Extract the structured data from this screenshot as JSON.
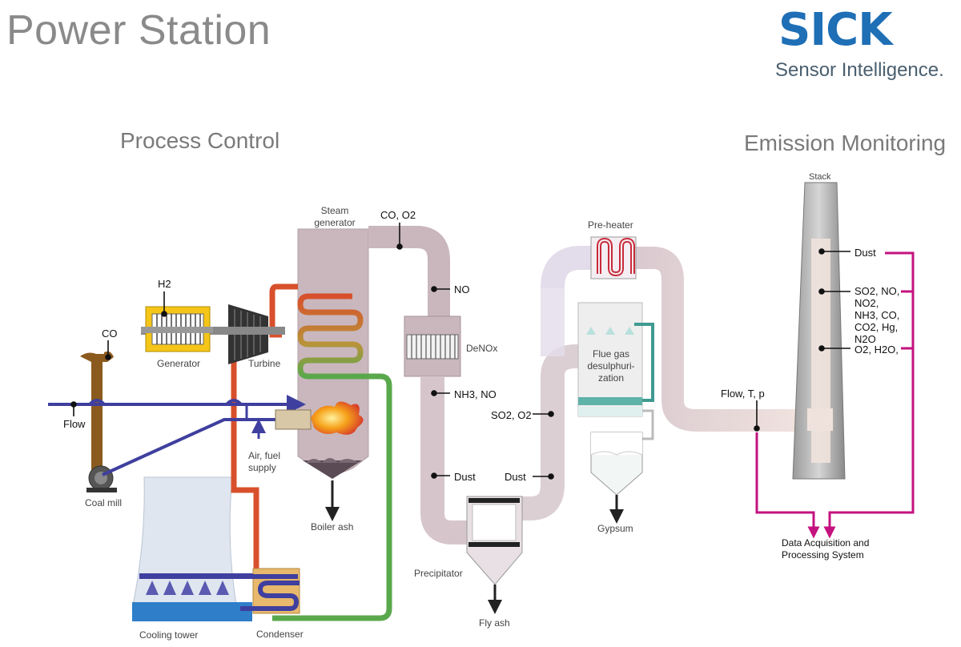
{
  "header": {
    "title": "Power Station",
    "logo_name": "SICK",
    "logo_tagline": "Sensor Intelligence."
  },
  "sections": {
    "process_control": "Process Control",
    "emission_monitoring": "Emission Monitoring"
  },
  "components": {
    "generator": "Generator",
    "turbine": "Turbine",
    "steam_generator": "Steam generator",
    "coal_mill": "Coal mill",
    "air_fuel_supply": "Air, fuel supply",
    "boiler_ash": "Boiler ash",
    "cooling_tower": "Cooling tower",
    "condenser": "Condenser",
    "denox": "DeNOx",
    "precipitator": "Precipitator",
    "fly_ash": "Fly ash",
    "pre_heater": "Pre-heater",
    "fgd": "Flue gas desulphuri-zation",
    "gypsum": "Gypsum",
    "stack": "Stack",
    "daq": "Data Acquisition and Processing System"
  },
  "measurements": {
    "h2": "H2",
    "co_mill": "CO",
    "flow": "Flow",
    "co_o2": "CO, O2",
    "no": "NO",
    "nh3_no": "NH3, NO",
    "so2_o2": "SO2, O2",
    "dust_pre": "Dust",
    "dust_post": "Dust",
    "dust_stack": "Dust",
    "so2_group": "SO2, NO, NO2, NH3, CO, CO2, Hg, N2O",
    "o2_h2o": "O2, H2O,",
    "flow_tp": "Flow, T, p"
  },
  "colors": {
    "steam": "#d8502b",
    "condensate": "#5aa84c",
    "water": "#3f3f9f",
    "flue_gas": "#c9b7bd",
    "emission_link": "#c4127f",
    "brand": "#1e6fb5"
  }
}
